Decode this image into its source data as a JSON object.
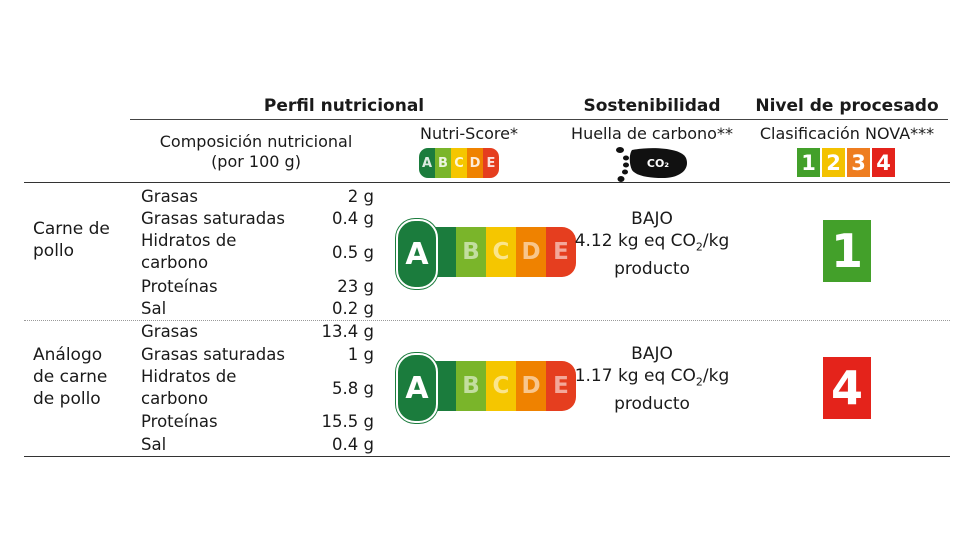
{
  "headers": {
    "perfil": "Perfil nutricional",
    "sostenibilidad": "Sostenibilidad",
    "procesado": "Nivel de procesado"
  },
  "subheaders": {
    "composicion_line1": "Composición nutricional",
    "composicion_line2": "(por 100 g)",
    "nutriscore": "Nutri-Score*",
    "huella": "Huella de carbono**",
    "co2_icon_label": "CO₂",
    "nova": "Clasificación NOVA***"
  },
  "nutriscore_letters": [
    "A",
    "B",
    "C",
    "D",
    "E"
  ],
  "nova_levels": [
    "1",
    "2",
    "3",
    "4"
  ],
  "colors": {
    "ns_A": "#1b7c3d",
    "ns_B": "#7ab52a",
    "ns_C": "#f5c600",
    "ns_D": "#ef8200",
    "ns_E": "#e53e1f",
    "nova_1": "#43a02a",
    "nova_2": "#f3c200",
    "nova_3": "#ee7d20",
    "nova_4": "#e4231b"
  },
  "rows": [
    {
      "product_line1": "Carne de",
      "product_line2": "pollo",
      "nutrients": [
        {
          "name": "Grasas",
          "value": "2 g"
        },
        {
          "name": "Grasas saturadas",
          "value": "0.4 g"
        },
        {
          "name_line1": "Hidratos de",
          "name_line2": "carbono",
          "value": "0.5 g"
        },
        {
          "name": "Proteínas",
          "value": "23 g"
        },
        {
          "name": "Sal",
          "value": "0.2 g"
        }
      ],
      "nutriscore": "A",
      "footprint_level": "BAJO",
      "footprint_value": "4.12 kg eq CO",
      "footprint_sub": "2",
      "footprint_unit": "/kg",
      "footprint_line3": "producto",
      "nova": "1"
    },
    {
      "product_line1": "Análogo",
      "product_line2": "de carne",
      "product_line3": "de pollo",
      "nutrients": [
        {
          "name": "Grasas",
          "value": "13.4 g"
        },
        {
          "name": "Grasas saturadas",
          "value": "1 g"
        },
        {
          "name_line1": "Hidratos de",
          "name_line2": "carbono",
          "value": "5.8 g"
        },
        {
          "name": "Proteínas",
          "value": "15.5 g"
        },
        {
          "name": "Sal",
          "value": "0.4 g"
        }
      ],
      "nutriscore": "A",
      "footprint_level": "BAJO",
      "footprint_value": "1.17 kg eq CO",
      "footprint_sub": "2",
      "footprint_unit": "/kg",
      "footprint_line3": "producto",
      "nova": "4"
    }
  ]
}
